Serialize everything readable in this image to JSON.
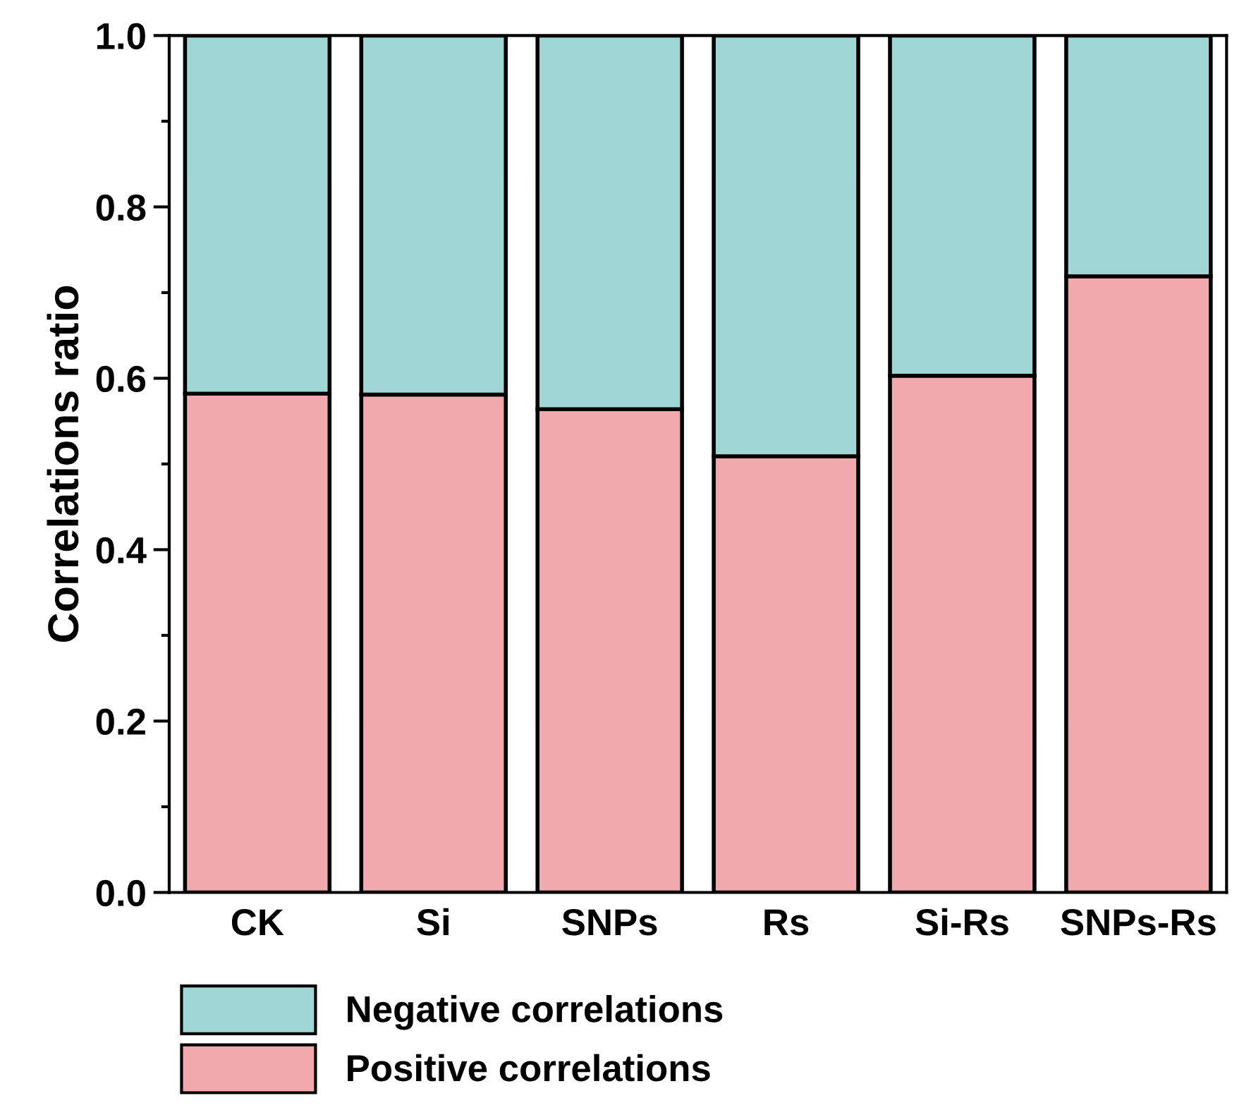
{
  "chart_data": {
    "type": "bar",
    "stacked": true,
    "ylabel": "Correlations ratio",
    "categories": [
      "CK",
      "Si",
      "SNPs",
      "Rs",
      "Si-Rs",
      "SNPs-Rs"
    ],
    "series": [
      {
        "name": "Positive correlations",
        "color": "#f1a9ae",
        "values": [
          0.582,
          0.581,
          0.564,
          0.509,
          0.603,
          0.719
        ]
      },
      {
        "name": "Negative correlations",
        "color": "#a0d6d6",
        "values": [
          0.418,
          0.419,
          0.436,
          0.491,
          0.397,
          0.281
        ]
      }
    ],
    "ylim": [
      0,
      1.0
    ],
    "yticks": [
      {
        "value": 0,
        "label": "0.0"
      },
      0.2,
      0.4,
      0.6,
      0.8,
      {
        "value": 1.0,
        "label": "1.0"
      }
    ],
    "grid": false,
    "legend": "bottom"
  }
}
